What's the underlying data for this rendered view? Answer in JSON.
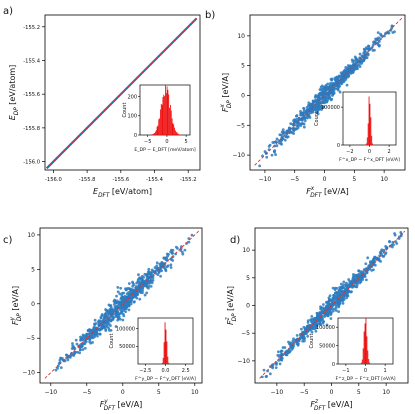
{
  "chart_data": [
    {
      "type": "scatter",
      "panel_label": "a)",
      "xlabel": "E_DFT [eV/atom]",
      "ylabel": "E_DP [eV/atom]",
      "xlim": [
        -156.05,
        -155.13
      ],
      "ylim": [
        -156.05,
        -155.13
      ],
      "xticks": [
        -156.0,
        -155.8,
        -155.6,
        -155.4,
        -155.2
      ],
      "xtick_labels": [
        "-156.0",
        "-155.8",
        "-155.6",
        "-155.4",
        "-155.2"
      ],
      "yticks": [
        -156.0,
        -155.8,
        -155.6,
        -155.4,
        -155.2
      ],
      "ytick_labels": [
        "-156.0",
        "-155.8",
        "-155.6",
        "-155.4",
        "-155.2"
      ],
      "series": [
        {
          "values": {
            "x": [
              -156.04,
              -155.15
            ],
            "y": [
              -156.04,
              -155.15
            ]
          },
          "color": "#2b6fb3"
        }
      ],
      "reference_line": {
        "style": "dashed",
        "color": "#e03030"
      },
      "inset": {
        "type": "histogram",
        "xlabel": "E_DP − E_DFT [meV/atom]",
        "ylabel": "Count",
        "xlim": [
          -7,
          6
        ],
        "ylim": [
          0,
          260
        ],
        "xticks": [
          -5,
          0,
          5
        ],
        "xtick_labels": [
          "−5",
          "0",
          "5"
        ],
        "yticks": [
          0,
          100,
          200
        ],
        "ytick_labels": [
          "0",
          "100",
          "200"
        ],
        "center": -0.3,
        "spread": 1.2,
        "peak": 230,
        "color": "#ee1111"
      }
    },
    {
      "type": "scatter",
      "panel_label": "b)",
      "xlabel": "F^x_DFT [eV/A]",
      "ylabel": "F^x_DP [eV/A]",
      "xlim": [
        -12.5,
        13.5
      ],
      "ylim": [
        -12.5,
        13.5
      ],
      "xticks": [
        -10,
        -5,
        0,
        5,
        10
      ],
      "xtick_labels": [
        "−10",
        "−5",
        "0",
        "5",
        "10"
      ],
      "yticks": [
        -10,
        -5,
        0,
        5,
        10
      ],
      "ytick_labels": [
        "−10",
        "−5",
        "0",
        "5",
        "10"
      ],
      "series": [
        {
          "values": {
            "x_range": [
              -11,
              12
            ],
            "scatter_width": 0.6
          },
          "color": "#2b7bbf"
        }
      ],
      "reference_line": {
        "style": "dashed",
        "color": "#e03030"
      },
      "inset": {
        "type": "histogram",
        "xlabel": "F^x_DP − F^x_DFT [eV/A]",
        "ylabel": "Count",
        "xlim": [
          -2.7,
          2.7
        ],
        "ylim": [
          0,
          140000
        ],
        "xticks": [
          -2,
          0,
          2
        ],
        "xtick_labels": [
          "−2",
          "0",
          "2"
        ],
        "yticks": [
          0,
          100000
        ],
        "ytick_labels": [
          "0",
          "100000"
        ],
        "center": 0,
        "spread": 0.12,
        "peak": 125000,
        "color": "#ee1111"
      }
    },
    {
      "type": "scatter",
      "panel_label": "c)",
      "xlabel": "F^y_DFT [eV/A]",
      "ylabel": "F^y_DP [eV/A]",
      "xlim": [
        -11.5,
        11.0
      ],
      "ylim": [
        -11.5,
        11.0
      ],
      "xticks": [
        -10,
        -5,
        0,
        5,
        10
      ],
      "xtick_labels": [
        "−10",
        "−5",
        "0",
        "5",
        "10"
      ],
      "yticks": [
        -10,
        -5,
        0,
        5,
        10
      ],
      "ytick_labels": [
        "−10",
        "−5",
        "0",
        "5",
        "10"
      ],
      "series": [
        {
          "values": {
            "x_range": [
              -10,
              10
            ],
            "scatter_width": 0.6
          },
          "color": "#2b7bbf"
        }
      ],
      "reference_line": {
        "style": "dashed",
        "color": "#e03030"
      },
      "inset": {
        "type": "histogram",
        "xlabel": "F^y_DP − F^y_DFT [eV/A]",
        "ylabel": "Count",
        "xlim": [
          -3.4,
          3.4
        ],
        "ylim": [
          0,
          130000
        ],
        "xticks": [
          -2.5,
          0.0,
          2.5
        ],
        "xtick_labels": [
          "−2.5",
          "0.0",
          "2.5"
        ],
        "yticks": [
          50000,
          100000
        ],
        "ytick_labels": [
          "50000",
          "100000"
        ],
        "center": 0,
        "spread": 0.15,
        "peak": 120000,
        "color": "#ee1111"
      }
    },
    {
      "type": "scatter",
      "panel_label": "d)",
      "xlabel": "F^z_DFT [eV/A]",
      "ylabel": "F^z_DP [eV/A]",
      "xlim": [
        -14,
        14
      ],
      "ylim": [
        -14,
        14
      ],
      "xticks": [
        -10,
        -5,
        0,
        5,
        10
      ],
      "xtick_labels": [
        "−10",
        "−5",
        "0",
        "5",
        "10"
      ],
      "yticks": [
        -10,
        -5,
        0,
        5,
        10
      ],
      "ytick_labels": [
        "−10",
        "−5",
        "0",
        "5",
        "10"
      ],
      "series": [
        {
          "values": {
            "x_range": [
              -13,
              13
            ],
            "scatter_width": 0.6
          },
          "color": "#2b7bbf"
        }
      ],
      "reference_line": {
        "style": "dashed",
        "color": "#e03030"
      },
      "inset": {
        "type": "histogram",
        "xlabel": "F^z_DP − F^z_DFT [eV/A]",
        "ylabel": "Count",
        "xlim": [
          -1.4,
          1.4
        ],
        "ylim": [
          0,
          125000
        ],
        "xticks": [
          -1,
          0,
          1
        ],
        "xtick_labels": [
          "−1",
          "0",
          "1"
        ],
        "yticks": [
          0,
          50000,
          100000
        ],
        "ytick_labels": [
          "0",
          "50000",
          "100000"
        ],
        "center": 0,
        "spread": 0.08,
        "peak": 115000,
        "color": "#ee1111"
      }
    }
  ]
}
